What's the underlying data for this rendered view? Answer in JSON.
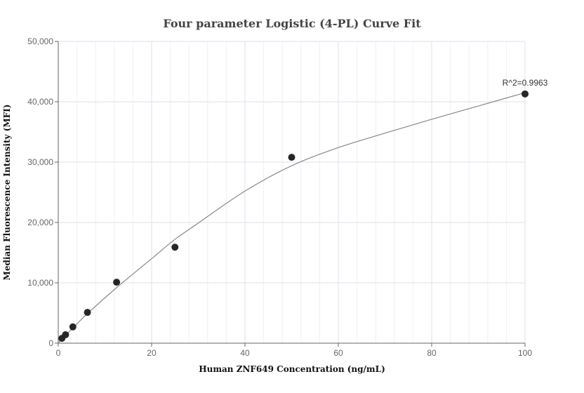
{
  "chart_data": {
    "type": "scatter",
    "title": "Four parameter Logistic (4-PL) Curve Fit",
    "xlabel": "Human ZNF649 Concentration (ng/mL)",
    "ylabel": "Median Fluorescence Intensity (MFI)",
    "xlim": [
      0,
      100
    ],
    "ylim": [
      0,
      50000
    ],
    "xticks": [
      0,
      20,
      40,
      60,
      80,
      100
    ],
    "xtick_labels": [
      "0",
      "20",
      "40",
      "60",
      "80",
      "100"
    ],
    "yticks": [
      0,
      10000,
      20000,
      30000,
      40000,
      50000
    ],
    "ytick_labels": [
      "0",
      "10,000",
      "20,000",
      "30,000",
      "40,000",
      "50,000"
    ],
    "grid": true,
    "points": {
      "x": [
        0.78,
        1.56,
        3.125,
        6.25,
        12.5,
        25,
        50,
        100
      ],
      "y": [
        800,
        1400,
        2700,
        5100,
        10100,
        15900,
        30800,
        41300
      ]
    },
    "fitted_curve": {
      "x": [
        0,
        0.78,
        3.125,
        6.25,
        12.5,
        20,
        25,
        30,
        40,
        50,
        60,
        70,
        80,
        90,
        100
      ],
      "y": [
        0,
        700,
        2500,
        4900,
        9200,
        14000,
        17200,
        19900,
        25200,
        29400,
        32400,
        34800,
        37100,
        39300,
        41500
      ]
    },
    "annotation": "R^2=0.9963",
    "point_color": "#262626",
    "curve_color": "#888888"
  }
}
